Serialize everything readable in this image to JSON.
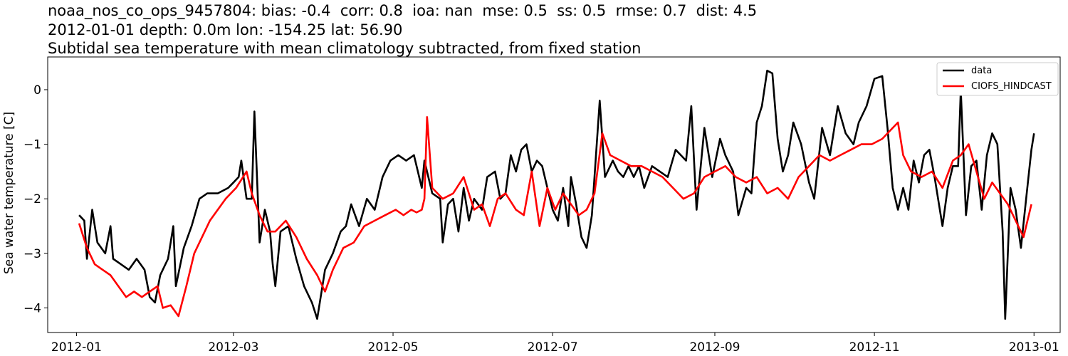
{
  "figure": {
    "title_lines": [
      "noaa_nos_co_ops_9457804: bias: -0.4  corr: 0.8  ioa: nan  mse: 0.5  ss: 0.5  rmse: 0.7  dist: 4.5",
      "2012-01-01 depth: 0.0m lon: -154.25 lat: 56.90",
      "Subtidal sea temperature with mean climatology subtracted, from fixed station"
    ]
  },
  "chart_data": {
    "type": "line",
    "title": "noaa_nos_co_ops_9457804: bias: -0.4  corr: 0.8  ioa: nan  mse: 0.5  ss: 0.5  rmse: 0.7  dist: 4.5",
    "xlabel": "",
    "ylabel": "Sea water temperature [C]",
    "xlim": [
      "2011-12-21",
      "2013-01-11"
    ],
    "ylim": [
      -4.45,
      0.6
    ],
    "x_ticks": [
      "2012-01",
      "2012-03",
      "2012-05",
      "2012-07",
      "2012-09",
      "2012-11",
      "2013-01"
    ],
    "y_ticks": [
      0,
      -1,
      -2,
      -3,
      -4
    ],
    "y_tick_labels": [
      "0",
      "−1",
      "−2",
      "−3",
      "−4"
    ],
    "grid": false,
    "legend_position": "top-right",
    "series": [
      {
        "name": "data",
        "color": "#000000",
        "points": [
          [
            "2012-01-02",
            -2.3
          ],
          [
            "2012-01-04",
            -2.4
          ],
          [
            "2012-01-05",
            -3.1
          ],
          [
            "2012-01-07",
            -2.2
          ],
          [
            "2012-01-09",
            -2.8
          ],
          [
            "2012-01-12",
            -3.0
          ],
          [
            "2012-01-14",
            -2.5
          ],
          [
            "2012-01-15",
            -3.1
          ],
          [
            "2012-01-18",
            -3.2
          ],
          [
            "2012-01-21",
            -3.3
          ],
          [
            "2012-01-24",
            -3.1
          ],
          [
            "2012-01-27",
            -3.3
          ],
          [
            "2012-01-29",
            -3.8
          ],
          [
            "2012-01-31",
            -3.9
          ],
          [
            "2012-02-02",
            -3.4
          ],
          [
            "2012-02-05",
            -3.1
          ],
          [
            "2012-02-07",
            -2.5
          ],
          [
            "2012-02-08",
            -3.6
          ],
          [
            "2012-02-11",
            -2.9
          ],
          [
            "2012-02-14",
            -2.5
          ],
          [
            "2012-02-17",
            -2.0
          ],
          [
            "2012-02-20",
            -1.9
          ],
          [
            "2012-02-24",
            -1.9
          ],
          [
            "2012-02-28",
            -1.8
          ],
          [
            "2012-03-01",
            -1.7
          ],
          [
            "2012-03-03",
            -1.6
          ],
          [
            "2012-03-04",
            -1.3
          ],
          [
            "2012-03-06",
            -2.0
          ],
          [
            "2012-03-08",
            -2.0
          ],
          [
            "2012-03-09",
            -0.4
          ],
          [
            "2012-03-11",
            -2.8
          ],
          [
            "2012-03-13",
            -2.2
          ],
          [
            "2012-03-15",
            -2.6
          ],
          [
            "2012-03-16",
            -3.2
          ],
          [
            "2012-03-17",
            -3.6
          ],
          [
            "2012-03-19",
            -2.6
          ],
          [
            "2012-03-22",
            -2.5
          ],
          [
            "2012-03-25",
            -3.1
          ],
          [
            "2012-03-28",
            -3.6
          ],
          [
            "2012-03-31",
            -3.9
          ],
          [
            "2012-04-02",
            -4.2
          ],
          [
            "2012-04-05",
            -3.3
          ],
          [
            "2012-04-08",
            -3.0
          ],
          [
            "2012-04-11",
            -2.6
          ],
          [
            "2012-04-13",
            -2.5
          ],
          [
            "2012-04-15",
            -2.1
          ],
          [
            "2012-04-18",
            -2.5
          ],
          [
            "2012-04-21",
            -2.0
          ],
          [
            "2012-04-24",
            -2.2
          ],
          [
            "2012-04-27",
            -1.6
          ],
          [
            "2012-04-30",
            -1.3
          ],
          [
            "2012-05-03",
            -1.2
          ],
          [
            "2012-05-06",
            -1.3
          ],
          [
            "2012-05-09",
            -1.2
          ],
          [
            "2012-05-12",
            -1.8
          ],
          [
            "2012-05-13",
            -1.3
          ],
          [
            "2012-05-16",
            -1.9
          ],
          [
            "2012-05-19",
            -2.0
          ],
          [
            "2012-05-20",
            -2.8
          ],
          [
            "2012-05-22",
            -2.1
          ],
          [
            "2012-05-24",
            -2.0
          ],
          [
            "2012-05-26",
            -2.6
          ],
          [
            "2012-05-28",
            -1.8
          ],
          [
            "2012-05-30",
            -2.4
          ],
          [
            "2012-06-01",
            -2.0
          ],
          [
            "2012-06-04",
            -2.2
          ],
          [
            "2012-06-06",
            -1.6
          ],
          [
            "2012-06-09",
            -1.5
          ],
          [
            "2012-06-11",
            -2.0
          ],
          [
            "2012-06-13",
            -1.9
          ],
          [
            "2012-06-15",
            -1.2
          ],
          [
            "2012-06-17",
            -1.5
          ],
          [
            "2012-06-19",
            -1.1
          ],
          [
            "2012-06-21",
            -1.0
          ],
          [
            "2012-06-23",
            -1.5
          ],
          [
            "2012-06-25",
            -1.3
          ],
          [
            "2012-06-27",
            -1.4
          ],
          [
            "2012-06-29",
            -1.8
          ],
          [
            "2012-07-01",
            -2.2
          ],
          [
            "2012-07-03",
            -2.4
          ],
          [
            "2012-07-05",
            -1.8
          ],
          [
            "2012-07-07",
            -2.5
          ],
          [
            "2012-07-08",
            -1.6
          ],
          [
            "2012-07-10",
            -2.1
          ],
          [
            "2012-07-12",
            -2.7
          ],
          [
            "2012-07-14",
            -2.9
          ],
          [
            "2012-07-16",
            -2.3
          ],
          [
            "2012-07-19",
            -0.2
          ],
          [
            "2012-07-21",
            -1.6
          ],
          [
            "2012-07-24",
            -1.3
          ],
          [
            "2012-07-26",
            -1.5
          ],
          [
            "2012-07-28",
            -1.6
          ],
          [
            "2012-07-30",
            -1.4
          ],
          [
            "2012-08-01",
            -1.6
          ],
          [
            "2012-08-03",
            -1.4
          ],
          [
            "2012-08-05",
            -1.8
          ],
          [
            "2012-08-08",
            -1.4
          ],
          [
            "2012-08-11",
            -1.5
          ],
          [
            "2012-08-14",
            -1.6
          ],
          [
            "2012-08-17",
            -1.1
          ],
          [
            "2012-08-19",
            -1.2
          ],
          [
            "2012-08-21",
            -1.3
          ],
          [
            "2012-08-23",
            -0.3
          ],
          [
            "2012-08-25",
            -2.2
          ],
          [
            "2012-08-28",
            -0.7
          ],
          [
            "2012-08-31",
            -1.6
          ],
          [
            "2012-09-03",
            -0.9
          ],
          [
            "2012-09-05",
            -1.2
          ],
          [
            "2012-09-08",
            -1.5
          ],
          [
            "2012-09-10",
            -2.3
          ],
          [
            "2012-09-13",
            -1.8
          ],
          [
            "2012-09-15",
            -1.9
          ],
          [
            "2012-09-17",
            -0.6
          ],
          [
            "2012-09-19",
            -0.3
          ],
          [
            "2012-09-21",
            0.35
          ],
          [
            "2012-09-23",
            0.3
          ],
          [
            "2012-09-25",
            -0.9
          ],
          [
            "2012-09-27",
            -1.5
          ],
          [
            "2012-09-29",
            -1.2
          ],
          [
            "2012-10-01",
            -0.6
          ],
          [
            "2012-10-04",
            -1.0
          ],
          [
            "2012-10-07",
            -1.7
          ],
          [
            "2012-10-09",
            -2.0
          ],
          [
            "2012-10-12",
            -0.7
          ],
          [
            "2012-10-15",
            -1.2
          ],
          [
            "2012-10-18",
            -0.3
          ],
          [
            "2012-10-21",
            -0.8
          ],
          [
            "2012-10-24",
            -1.0
          ],
          [
            "2012-10-26",
            -0.6
          ],
          [
            "2012-10-29",
            -0.3
          ],
          [
            "2012-11-01",
            0.2
          ],
          [
            "2012-11-04",
            0.25
          ],
          [
            "2012-11-06",
            -0.7
          ],
          [
            "2012-11-08",
            -1.8
          ],
          [
            "2012-11-10",
            -2.2
          ],
          [
            "2012-11-12",
            -1.8
          ],
          [
            "2012-11-14",
            -2.2
          ],
          [
            "2012-11-16",
            -1.3
          ],
          [
            "2012-11-18",
            -1.7
          ],
          [
            "2012-11-20",
            -1.2
          ],
          [
            "2012-11-22",
            -1.1
          ],
          [
            "2012-11-24",
            -1.6
          ],
          [
            "2012-11-27",
            -2.5
          ],
          [
            "2012-11-29",
            -1.8
          ],
          [
            "2012-12-01",
            -1.4
          ],
          [
            "2012-12-03",
            -1.4
          ],
          [
            "2012-12-04",
            0.0
          ],
          [
            "2012-12-06",
            -2.3
          ],
          [
            "2012-12-08",
            -1.4
          ],
          [
            "2012-12-10",
            -1.3
          ],
          [
            "2012-12-12",
            -2.2
          ],
          [
            "2012-12-14",
            -1.2
          ],
          [
            "2012-12-16",
            -0.8
          ],
          [
            "2012-12-18",
            -1.0
          ],
          [
            "2012-12-20",
            -2.6
          ],
          [
            "2012-12-21",
            -4.2
          ],
          [
            "2012-12-23",
            -1.8
          ],
          [
            "2012-12-25",
            -2.2
          ],
          [
            "2012-12-27",
            -2.9
          ],
          [
            "2012-12-29",
            -2.0
          ],
          [
            "2012-12-31",
            -1.1
          ],
          [
            "2013-01-01",
            -0.8
          ]
        ]
      },
      {
        "name": "CIOFS_HINDCAST",
        "color": "#ff0000",
        "points": [
          [
            "2012-01-02",
            -2.45
          ],
          [
            "2012-01-05",
            -2.9
          ],
          [
            "2012-01-08",
            -3.2
          ],
          [
            "2012-01-11",
            -3.3
          ],
          [
            "2012-01-14",
            -3.4
          ],
          [
            "2012-01-17",
            -3.6
          ],
          [
            "2012-01-20",
            -3.8
          ],
          [
            "2012-01-23",
            -3.7
          ],
          [
            "2012-01-26",
            -3.8
          ],
          [
            "2012-01-29",
            -3.7
          ],
          [
            "2012-02-01",
            -3.6
          ],
          [
            "2012-02-03",
            -4.0
          ],
          [
            "2012-02-06",
            -3.95
          ],
          [
            "2012-02-09",
            -4.15
          ],
          [
            "2012-02-12",
            -3.6
          ],
          [
            "2012-02-15",
            -3.0
          ],
          [
            "2012-02-18",
            -2.7
          ],
          [
            "2012-02-21",
            -2.4
          ],
          [
            "2012-02-24",
            -2.2
          ],
          [
            "2012-02-27",
            -2.0
          ],
          [
            "2012-03-02",
            -1.8
          ],
          [
            "2012-03-06",
            -1.5
          ],
          [
            "2012-03-08",
            -1.9
          ],
          [
            "2012-03-11",
            -2.3
          ],
          [
            "2012-03-14",
            -2.6
          ],
          [
            "2012-03-17",
            -2.6
          ],
          [
            "2012-03-21",
            -2.4
          ],
          [
            "2012-03-25",
            -2.7
          ],
          [
            "2012-03-29",
            -3.1
          ],
          [
            "2012-04-02",
            -3.4
          ],
          [
            "2012-04-05",
            -3.7
          ],
          [
            "2012-04-08",
            -3.3
          ],
          [
            "2012-04-12",
            -2.9
          ],
          [
            "2012-04-16",
            -2.8
          ],
          [
            "2012-04-20",
            -2.5
          ],
          [
            "2012-04-24",
            -2.4
          ],
          [
            "2012-04-28",
            -2.3
          ],
          [
            "2012-05-02",
            -2.2
          ],
          [
            "2012-05-05",
            -2.3
          ],
          [
            "2012-05-08",
            -2.2
          ],
          [
            "2012-05-10",
            -2.25
          ],
          [
            "2012-05-12",
            -2.2
          ],
          [
            "2012-05-13",
            -2.0
          ],
          [
            "2012-05-14",
            -0.5
          ],
          [
            "2012-05-16",
            -1.8
          ],
          [
            "2012-05-20",
            -2.0
          ],
          [
            "2012-05-24",
            -1.9
          ],
          [
            "2012-05-28",
            -1.6
          ],
          [
            "2012-06-01",
            -2.2
          ],
          [
            "2012-06-04",
            -2.1
          ],
          [
            "2012-06-07",
            -2.5
          ],
          [
            "2012-06-10",
            -2.0
          ],
          [
            "2012-06-13",
            -1.9
          ],
          [
            "2012-06-17",
            -2.2
          ],
          [
            "2012-06-20",
            -2.3
          ],
          [
            "2012-06-23",
            -1.5
          ],
          [
            "2012-06-26",
            -2.5
          ],
          [
            "2012-06-29",
            -1.8
          ],
          [
            "2012-07-02",
            -2.2
          ],
          [
            "2012-07-05",
            -1.9
          ],
          [
            "2012-07-08",
            -2.1
          ],
          [
            "2012-07-11",
            -2.3
          ],
          [
            "2012-07-14",
            -2.2
          ],
          [
            "2012-07-17",
            -1.9
          ],
          [
            "2012-07-20",
            -0.8
          ],
          [
            "2012-07-23",
            -1.2
          ],
          [
            "2012-07-27",
            -1.3
          ],
          [
            "2012-07-31",
            -1.4
          ],
          [
            "2012-08-04",
            -1.4
          ],
          [
            "2012-08-08",
            -1.5
          ],
          [
            "2012-08-12",
            -1.6
          ],
          [
            "2012-08-16",
            -1.8
          ],
          [
            "2012-08-20",
            -2.0
          ],
          [
            "2012-08-24",
            -1.9
          ],
          [
            "2012-08-28",
            -1.6
          ],
          [
            "2012-09-01",
            -1.5
          ],
          [
            "2012-09-05",
            -1.4
          ],
          [
            "2012-09-09",
            -1.6
          ],
          [
            "2012-09-13",
            -1.7
          ],
          [
            "2012-09-17",
            -1.6
          ],
          [
            "2012-09-21",
            -1.9
          ],
          [
            "2012-09-25",
            -1.8
          ],
          [
            "2012-09-29",
            -2.0
          ],
          [
            "2012-10-03",
            -1.6
          ],
          [
            "2012-10-07",
            -1.4
          ],
          [
            "2012-10-11",
            -1.2
          ],
          [
            "2012-10-15",
            -1.3
          ],
          [
            "2012-10-19",
            -1.2
          ],
          [
            "2012-10-23",
            -1.1
          ],
          [
            "2012-10-27",
            -1.0
          ],
          [
            "2012-10-31",
            -1.0
          ],
          [
            "2012-11-04",
            -0.9
          ],
          [
            "2012-11-08",
            -0.7
          ],
          [
            "2012-11-10",
            -0.6
          ],
          [
            "2012-11-12",
            -1.2
          ],
          [
            "2012-11-15",
            -1.5
          ],
          [
            "2012-11-19",
            -1.6
          ],
          [
            "2012-11-23",
            -1.5
          ],
          [
            "2012-11-27",
            -1.8
          ],
          [
            "2012-12-01",
            -1.3
          ],
          [
            "2012-12-04",
            -1.2
          ],
          [
            "2012-12-07",
            -1.0
          ],
          [
            "2012-12-10",
            -1.5
          ],
          [
            "2012-12-13",
            -2.0
          ],
          [
            "2012-12-16",
            -1.7
          ],
          [
            "2012-12-19",
            -1.9
          ],
          [
            "2012-12-22",
            -2.1
          ],
          [
            "2012-12-25",
            -2.4
          ],
          [
            "2012-12-28",
            -2.7
          ],
          [
            "2012-12-31",
            -2.1
          ]
        ]
      }
    ]
  }
}
